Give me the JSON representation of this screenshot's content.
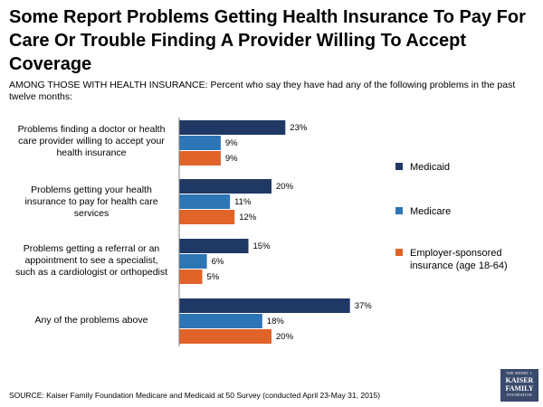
{
  "title": "Some Report Problems Getting Health Insurance To Pay For Care Or Trouble Finding A Provider Willing To Accept Coverage",
  "subtitle": "AMONG THOSE WITH HEALTH INSURANCE: Percent who say they have had any of the following problems in the past twelve months:",
  "source": "SOURCE: Kaiser Family Foundation Medicare and Medicaid at 50 Survey (conducted April 23-May 31, 2015)",
  "logo": {
    "line1": "THE HENRY J.",
    "line2a": "KAISER",
    "line2b": "FAMILY",
    "line3": "FOUNDATION"
  },
  "chart_data": {
    "type": "bar",
    "orientation": "horizontal",
    "categories": [
      "Problems finding a doctor or health care provider willing to accept your health insurance",
      "Problems getting your health insurance to pay for health care services",
      "Problems getting a referral or an appointment to see a specialist, such as a cardiologist or orthopedist",
      "Any of the problems above"
    ],
    "series": [
      {
        "name": "Medicaid",
        "color": "#1f3864",
        "values": [
          23,
          20,
          15,
          37
        ]
      },
      {
        "name": "Medicare",
        "color": "#2e75b6",
        "values": [
          9,
          11,
          6,
          18
        ]
      },
      {
        "name": "Employer-sponsored insurance (age 18-64)",
        "color": "#e0632a",
        "values": [
          9,
          12,
          5,
          20
        ]
      }
    ],
    "value_suffix": "%",
    "xlim": [
      0,
      40
    ],
    "grid": false,
    "legend_position": "right"
  }
}
